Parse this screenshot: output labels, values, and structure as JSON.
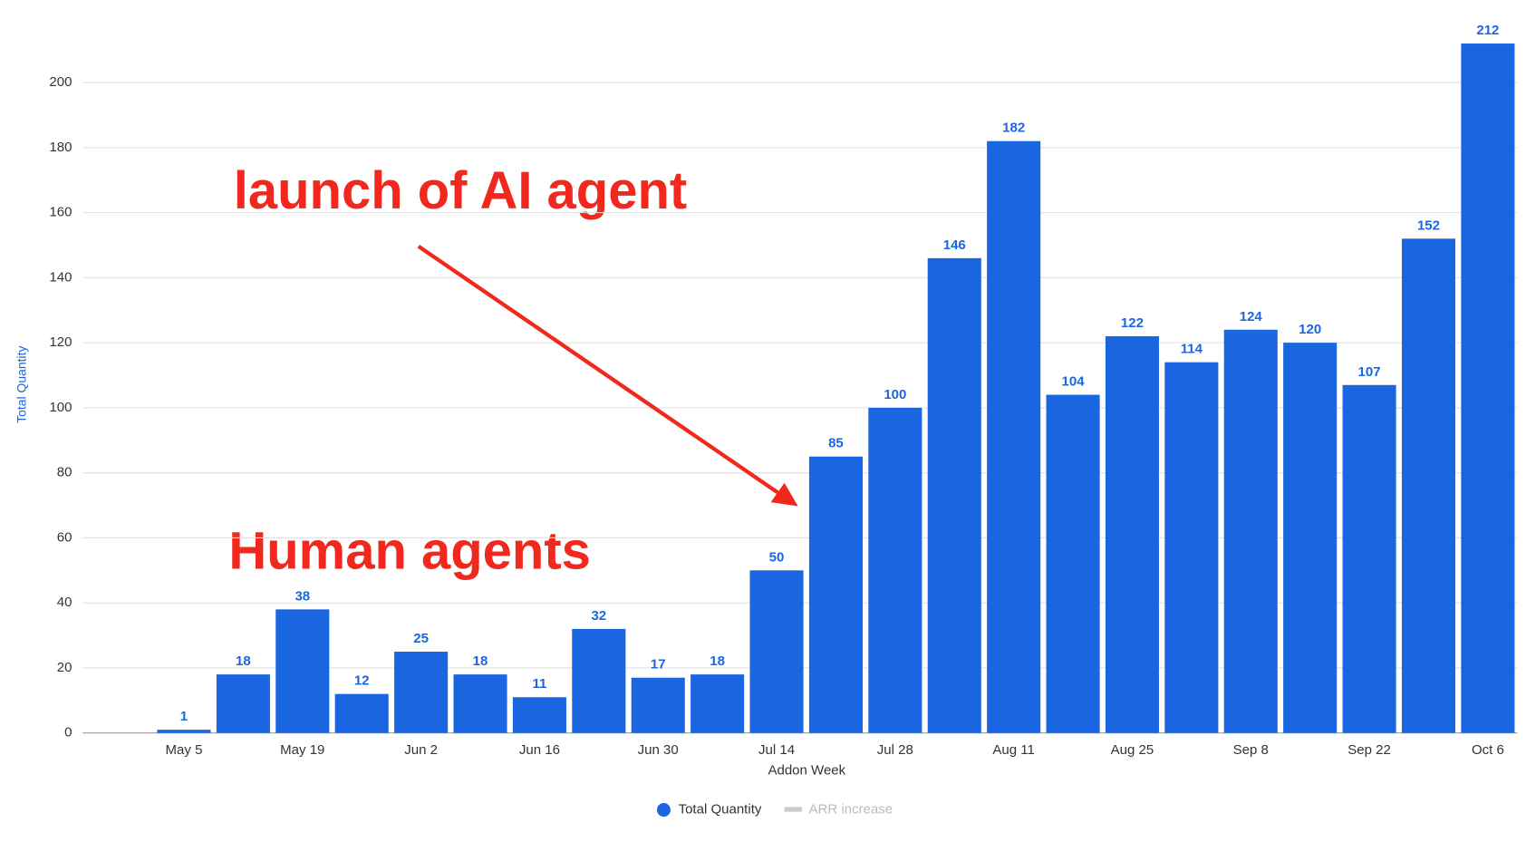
{
  "chart_data": {
    "type": "bar",
    "categories": [
      "May 5",
      null,
      "May 19",
      null,
      "Jun 2",
      null,
      "Jun 16",
      null,
      "Jun 30",
      null,
      "Jul 14",
      null,
      "Jul 28",
      null,
      "Aug 11",
      null,
      "Aug 25",
      null,
      "Sep 8",
      null,
      "Sep 22",
      null,
      "Oct 6"
    ],
    "series": [
      {
        "name": "Total Quantity",
        "color": "#1a66e0",
        "values": [
          1,
          18,
          38,
          12,
          25,
          18,
          11,
          32,
          17,
          18,
          50,
          85,
          100,
          146,
          182,
          104,
          122,
          114,
          124,
          120,
          107,
          152,
          212
        ]
      },
      {
        "name": "ARR increase",
        "color": "#cccccc",
        "values": [
          null,
          null,
          null,
          null,
          null,
          null,
          null,
          null,
          null,
          null,
          null,
          null,
          null,
          null,
          null,
          null,
          null,
          null,
          null,
          null,
          null,
          null,
          null
        ]
      }
    ],
    "xlabel": "Addon Week",
    "ylabel": "Total Quantity",
    "ylim": [
      0,
      220
    ],
    "yticks": [
      0,
      20,
      40,
      60,
      80,
      100,
      120,
      140,
      160,
      180,
      200
    ],
    "grid": true,
    "legend": "bottom",
    "annotations": [
      "launch of AI agent",
      "Human agents"
    ]
  }
}
